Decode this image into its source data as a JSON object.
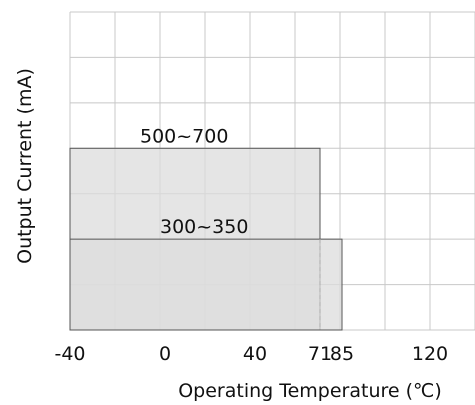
{
  "chart_data": {
    "type": "area",
    "title": "",
    "xlabel": "Operating Temperature (℃)",
    "ylabel": "Output Current (mA)",
    "x_ticks": [
      -40,
      0,
      40,
      71,
      85,
      120
    ],
    "y_ticks": [],
    "grid": true,
    "legend": "none",
    "regions": [
      {
        "label": "500~700",
        "x_start": -40,
        "x_end": 71,
        "fill": "#dcdcdc",
        "stroke": "#555555"
      },
      {
        "label": "300~350",
        "x_start": -40,
        "x_end": 85,
        "fill": "#dcdcdc",
        "stroke": "#555555"
      }
    ],
    "colors": {
      "grid": "#c8c8c8",
      "region_fill": "#dcdcdc",
      "region_stroke": "#555555",
      "dashed_guide": "#aaaaaa"
    }
  }
}
